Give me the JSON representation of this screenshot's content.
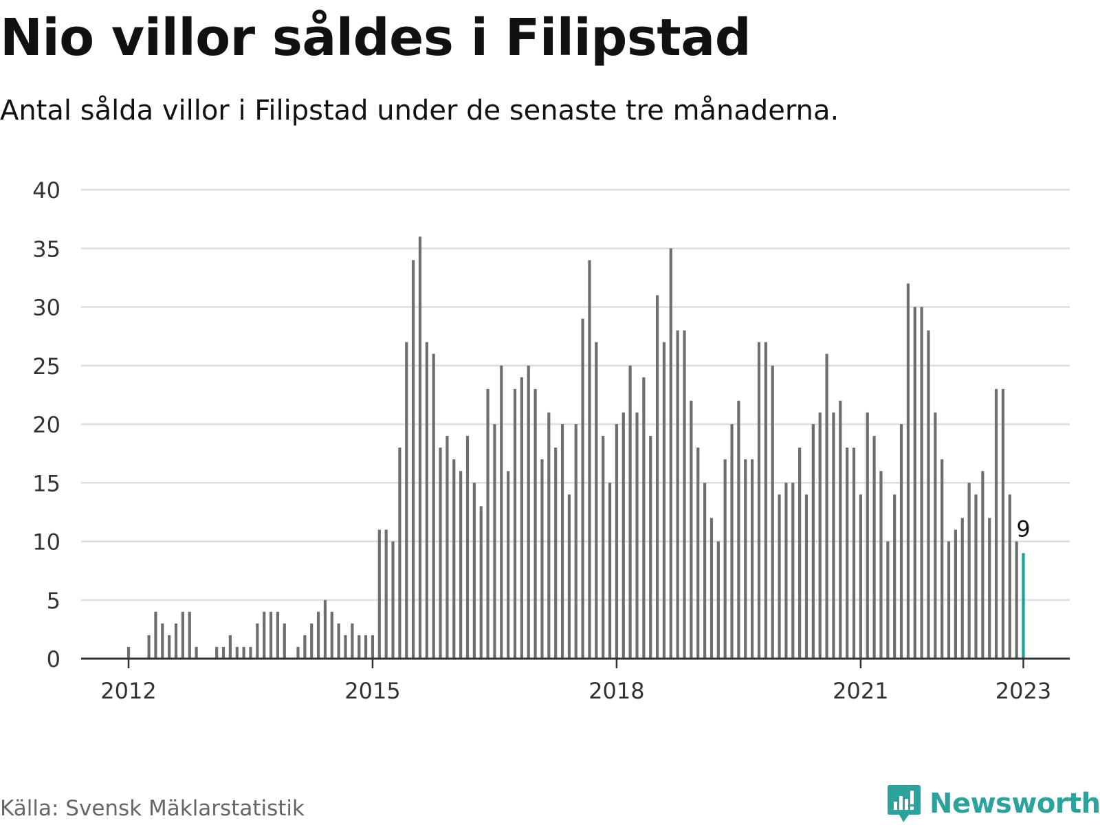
{
  "chart_data": {
    "type": "bar",
    "title": "Nio villor såldes i Filipstad",
    "subtitle": "Antal sålda villor i Filipstad under de senaste tre månaderna.",
    "xlabel": "",
    "ylabel": "",
    "ylim": [
      0,
      40
    ],
    "yticks": [
      0,
      5,
      10,
      15,
      20,
      25,
      30,
      35,
      40
    ],
    "xticks": [
      {
        "label": "2012",
        "index": 0
      },
      {
        "label": "2015",
        "index": 36
      },
      {
        "label": "2018",
        "index": 72
      },
      {
        "label": "2021",
        "index": 108
      },
      {
        "label": "2023",
        "index": 132
      }
    ],
    "grid": true,
    "start_month": "2012-01",
    "values": [
      1,
      0,
      0,
      2,
      4,
      3,
      2,
      3,
      4,
      4,
      1,
      0,
      0,
      1,
      1,
      2,
      1,
      1,
      1,
      3,
      4,
      4,
      4,
      3,
      0,
      1,
      2,
      3,
      4,
      5,
      4,
      3,
      2,
      3,
      2,
      2,
      2,
      11,
      11,
      10,
      18,
      27,
      34,
      36,
      27,
      26,
      18,
      19,
      17,
      16,
      19,
      15,
      13,
      23,
      20,
      25,
      16,
      23,
      24,
      25,
      23,
      17,
      21,
      18,
      20,
      14,
      20,
      29,
      34,
      27,
      19,
      15,
      20,
      21,
      25,
      21,
      24,
      19,
      31,
      27,
      35,
      28,
      28,
      22,
      18,
      15,
      12,
      10,
      17,
      20,
      22,
      17,
      17,
      27,
      27,
      25,
      14,
      15,
      15,
      18,
      14,
      20,
      21,
      26,
      21,
      22,
      18,
      18,
      14,
      21,
      19,
      16,
      10,
      14,
      20,
      32,
      30,
      30,
      28,
      21,
      17,
      10,
      11,
      12,
      15,
      14,
      16,
      12,
      23,
      23,
      14,
      10,
      9
    ],
    "highlight_index": 132,
    "highlight_label": "9",
    "colors": {
      "bar": "#6e6e6e",
      "highlight": "#1f9e96",
      "grid": "#dddddd",
      "axis": "#333333"
    },
    "source": "Källa: Svensk Mäklarstatistik",
    "brand": "Newsworthy"
  }
}
